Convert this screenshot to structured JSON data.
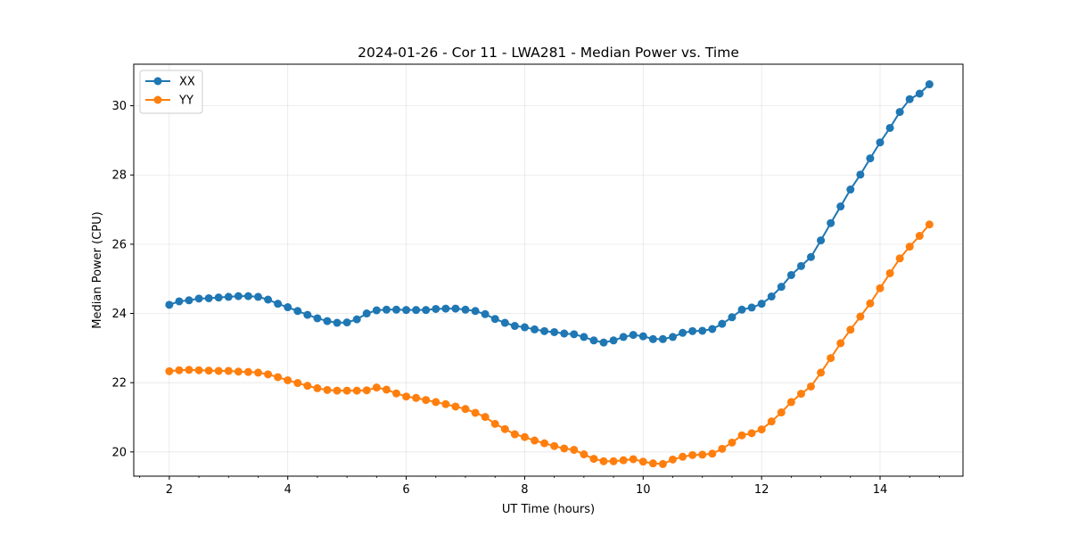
{
  "chart_data": {
    "type": "line",
    "title": "2024-01-26 - Cor 11 - LWA281 - Median Power vs. Time",
    "xlabel": "UT Time (hours)",
    "ylabel": "Median Power (CPU)",
    "xlim": [
      1.4,
      15.4
    ],
    "ylim": [
      19.3,
      31.2
    ],
    "xticks": [
      2,
      4,
      6,
      8,
      10,
      12,
      14
    ],
    "xtick_labels": [
      "2",
      "4",
      "6",
      "8",
      "10",
      "12",
      "14"
    ],
    "yticks": [
      20,
      22,
      24,
      26,
      28,
      30
    ],
    "ytick_labels": [
      "20",
      "22",
      "24",
      "26",
      "28",
      "30"
    ],
    "x_minor_step": 0.5,
    "grid": true,
    "legend_position": "upper-left",
    "x": [
      2.0,
      2.167,
      2.333,
      2.5,
      2.667,
      2.833,
      3.0,
      3.167,
      3.333,
      3.5,
      3.667,
      3.833,
      4.0,
      4.167,
      4.333,
      4.5,
      4.667,
      4.833,
      5.0,
      5.167,
      5.333,
      5.5,
      5.667,
      5.833,
      6.0,
      6.167,
      6.333,
      6.5,
      6.667,
      6.833,
      7.0,
      7.167,
      7.333,
      7.5,
      7.667,
      7.833,
      8.0,
      8.167,
      8.333,
      8.5,
      8.667,
      8.833,
      9.0,
      9.167,
      9.333,
      9.5,
      9.667,
      9.833,
      10.0,
      10.167,
      10.333,
      10.5,
      10.667,
      10.833,
      11.0,
      11.167,
      11.333,
      11.5,
      11.667,
      11.833,
      12.0,
      12.167,
      12.333,
      12.5,
      12.667,
      12.833,
      13.0,
      13.167,
      13.333,
      13.5,
      13.667,
      13.833,
      14.0,
      14.167,
      14.333,
      14.5,
      14.667,
      14.833
    ],
    "series": [
      {
        "name": "XX",
        "color": "#1f77b4",
        "values": [
          24.25,
          24.35,
          24.38,
          24.43,
          24.44,
          24.46,
          24.48,
          24.5,
          24.5,
          24.48,
          24.4,
          24.28,
          24.18,
          24.07,
          23.96,
          23.86,
          23.78,
          23.73,
          23.74,
          23.83,
          24.0,
          24.09,
          24.11,
          24.11,
          24.1,
          24.1,
          24.1,
          24.13,
          24.14,
          24.14,
          24.11,
          24.07,
          23.98,
          23.84,
          23.73,
          23.64,
          23.6,
          23.54,
          23.49,
          23.46,
          23.42,
          23.4,
          23.32,
          23.22,
          23.16,
          23.22,
          23.32,
          23.38,
          23.34,
          23.26,
          23.26,
          23.32,
          23.44,
          23.49,
          23.5,
          23.55,
          23.7,
          23.89,
          24.11,
          24.17,
          24.28,
          24.49,
          24.77,
          25.11,
          25.37,
          25.63,
          26.11,
          26.61,
          27.09,
          27.58,
          28.01,
          28.48,
          28.94,
          29.36,
          29.82,
          30.19,
          30.35,
          30.62
        ]
      },
      {
        "name": "YY",
        "color": "#ff7f0e",
        "values": [
          22.33,
          22.36,
          22.37,
          22.36,
          22.35,
          22.34,
          22.34,
          22.32,
          22.31,
          22.29,
          22.24,
          22.16,
          22.07,
          21.99,
          21.91,
          21.84,
          21.79,
          21.77,
          21.77,
          21.77,
          21.78,
          21.86,
          21.8,
          21.69,
          21.6,
          21.56,
          21.5,
          21.44,
          21.38,
          21.31,
          21.24,
          21.13,
          21.01,
          20.81,
          20.66,
          20.51,
          20.43,
          20.33,
          20.25,
          20.17,
          20.1,
          20.06,
          19.93,
          19.8,
          19.73,
          19.73,
          19.76,
          19.79,
          19.72,
          19.67,
          19.65,
          19.78,
          19.86,
          19.91,
          19.92,
          19.95,
          20.09,
          20.27,
          20.48,
          20.54,
          20.65,
          20.88,
          21.14,
          21.44,
          21.68,
          21.89,
          22.29,
          22.71,
          23.14,
          23.53,
          23.91,
          24.29,
          24.73,
          25.16,
          25.59,
          25.93,
          26.24,
          26.57
        ]
      }
    ]
  }
}
